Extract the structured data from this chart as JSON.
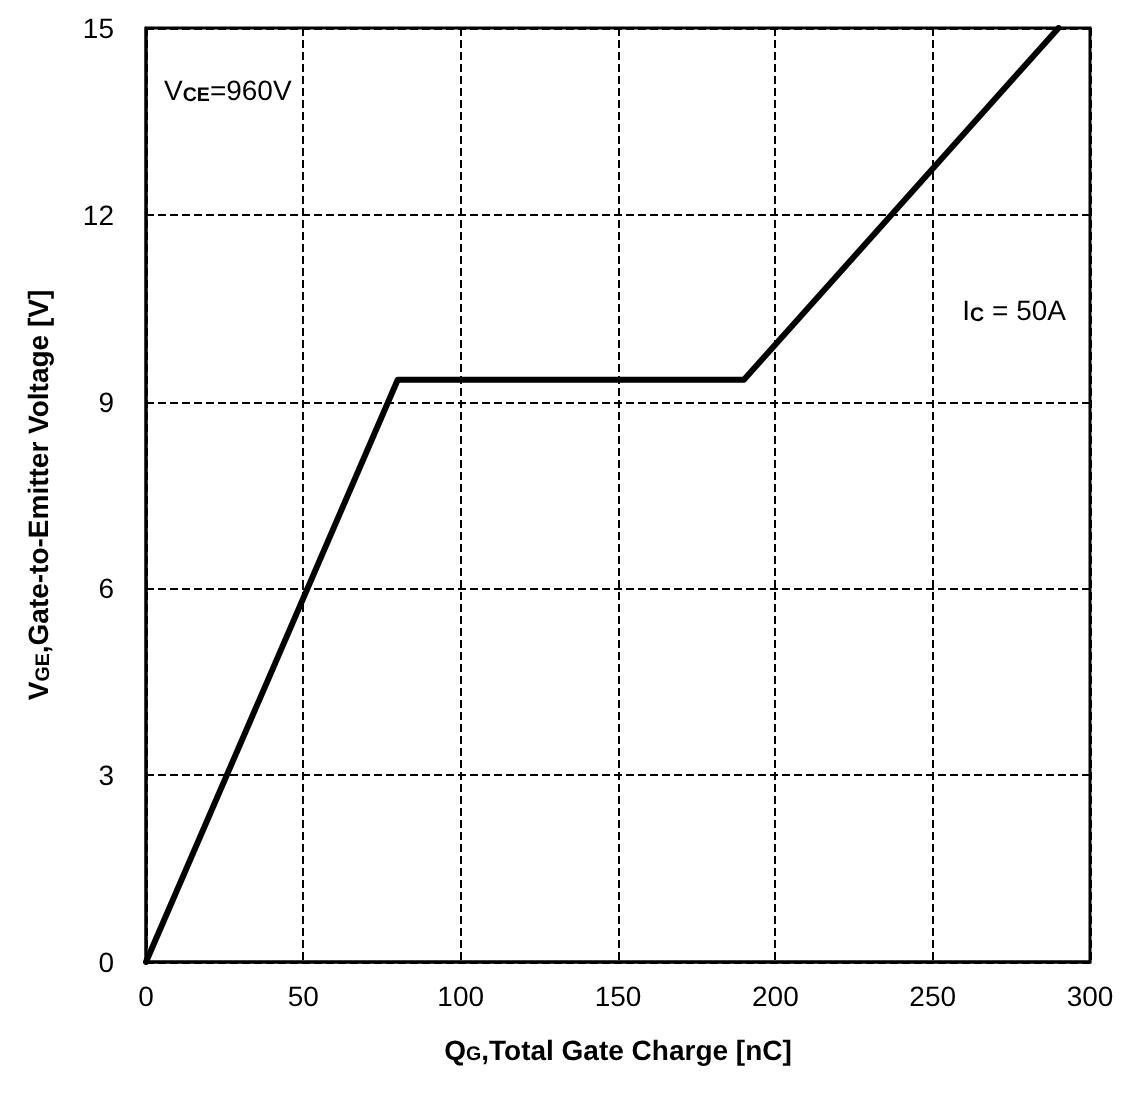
{
  "chart_data": {
    "type": "line",
    "xlabel": "Q$_{G}$,Total Gate Charge [nC]",
    "ylabel": "V$_{GE}$,Gate-to-Emitter Voltage [V]",
    "annotations": [
      "V$_{CE}$=960V",
      "I$_{C}$ = 50A"
    ],
    "x": [
      0,
      80,
      190,
      290
    ],
    "series": [
      {
        "color": "#000000",
        "values": [
          0,
          9.35,
          9.35,
          15
        ]
      }
    ],
    "xlim": [
      0,
      300
    ],
    "xticks": [
      0,
      50,
      100,
      150,
      200,
      250,
      300
    ],
    "ylim": [
      0,
      15
    ],
    "yticks": [
      0,
      3,
      6,
      9,
      12,
      15
    ],
    "grid": true,
    "marker": "none",
    "line_style": "solid"
  }
}
